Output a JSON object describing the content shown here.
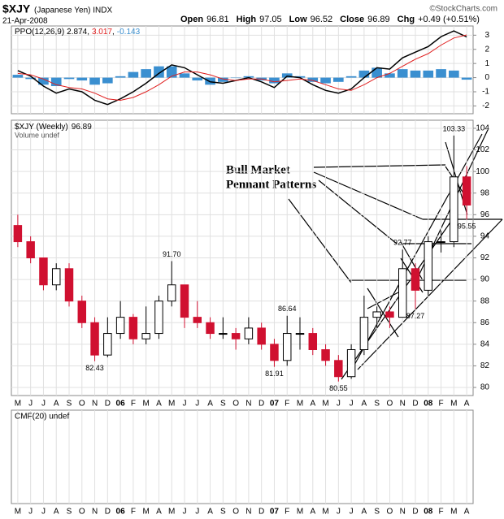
{
  "header": {
    "symbol": "$XJY",
    "name": "(Japanese Yen) INDX",
    "date": "21-Apr-2008",
    "watermark": "©StockCharts.com",
    "quote": [
      {
        "label": "Open",
        "value": "96.81"
      },
      {
        "label": "High",
        "value": "97.05"
      },
      {
        "label": "Low",
        "value": "96.52"
      },
      {
        "label": "Close",
        "value": "96.89"
      },
      {
        "label": "Chg",
        "value": "+0.49 (+0.51%)"
      }
    ]
  },
  "annotation": [
    "Bull Market",
    "Pennant Patterns"
  ],
  "chart_data": [
    {
      "type": "line",
      "title": "PPO(12,26,9)",
      "ylim": [
        -2.55,
        3.65
      ],
      "yticks": [
        -2,
        -1,
        0,
        1,
        2,
        3
      ],
      "grid": true,
      "series": [
        {
          "kind": "line",
          "color": "#000000",
          "values": [
            0.5,
            0.1,
            -0.6,
            -1.1,
            -0.8,
            -1.0,
            -1.6,
            -1.9,
            -1.5,
            -1.0,
            -0.4,
            0.3,
            0.9,
            0.7,
            0.2,
            -0.3,
            -0.4,
            -0.2,
            0.0,
            -0.3,
            -0.7,
            0.1,
            0.0,
            -0.5,
            -0.9,
            -1.1,
            -0.8,
            0.0,
            0.7,
            0.6,
            1.4,
            1.8,
            2.2,
            2.9,
            3.3,
            2.874
          ]
        },
        {
          "kind": "line",
          "color": "#e02020",
          "values": [
            0.3,
            0.2,
            -0.1,
            -0.5,
            -0.7,
            -0.8,
            -1.1,
            -1.5,
            -1.6,
            -1.4,
            -1.0,
            -0.5,
            0.1,
            0.4,
            0.4,
            0.2,
            -0.1,
            -0.2,
            -0.1,
            -0.1,
            -0.3,
            -0.2,
            -0.1,
            -0.2,
            -0.5,
            -0.8,
            -0.9,
            -0.5,
            0.0,
            0.3,
            0.8,
            1.3,
            1.7,
            2.3,
            2.8,
            3.017
          ]
        },
        {
          "kind": "bar",
          "color": "#3a8fd0",
          "values": [
            0.2,
            -0.1,
            -0.5,
            -0.6,
            -0.1,
            -0.2,
            -0.5,
            -0.4,
            0.1,
            0.4,
            0.6,
            0.8,
            0.8,
            0.3,
            -0.2,
            -0.5,
            -0.3,
            0.0,
            0.1,
            -0.2,
            -0.4,
            0.3,
            0.1,
            -0.3,
            -0.4,
            -0.3,
            0.1,
            0.5,
            0.7,
            0.3,
            0.6,
            0.5,
            0.5,
            0.6,
            0.5,
            -0.143
          ]
        }
      ]
    },
    {
      "type": "candlestick",
      "title": "$XJY (Weekly)",
      "subtitle": "Volume undef",
      "ylim": [
        79.25,
        104.75
      ],
      "yticks": [
        80,
        82,
        84,
        86,
        88,
        90,
        92,
        94,
        96,
        98,
        100,
        102,
        104
      ],
      "grid": true,
      "up_color": "#000000",
      "down_color": "#d01030",
      "categories": [
        "M",
        "J",
        "J",
        "A",
        "S",
        "O",
        "N",
        "D",
        "06",
        "F",
        "M",
        "A",
        "M",
        "J",
        "J",
        "A",
        "S",
        "O",
        "N",
        "D",
        "07",
        "F",
        "M",
        "A",
        "M",
        "J",
        "J",
        "A",
        "S",
        "O",
        "N",
        "D",
        "08",
        "F",
        "M",
        "A"
      ],
      "open": [
        95,
        93.5,
        92,
        89.5,
        91,
        88,
        86,
        83,
        85,
        86.5,
        84.5,
        85,
        88,
        89.5,
        86.5,
        86,
        85,
        85,
        84.5,
        85.5,
        84,
        82.5,
        85,
        85,
        83.5,
        82.5,
        81,
        83.5,
        86.5,
        87,
        86.5,
        91,
        89,
        93.5,
        93.5,
        99.5
      ],
      "high": [
        96,
        94,
        92,
        91.5,
        91.5,
        88.5,
        86.5,
        86.5,
        88,
        86.8,
        87.5,
        88.5,
        91.7,
        89.5,
        88,
        86.5,
        86.5,
        85.5,
        86.5,
        86,
        84.5,
        86.64,
        86.5,
        85.5,
        84,
        83,
        84,
        88.5,
        87.5,
        87.5,
        92.77,
        91.5,
        94,
        94.5,
        103.33,
        100.5
      ],
      "low": [
        93,
        91.5,
        89,
        89,
        87.5,
        85.5,
        82.43,
        82.8,
        84.5,
        84,
        84,
        84.5,
        87.5,
        85.5,
        85.5,
        84.5,
        84.5,
        83.5,
        84,
        83.5,
        81.91,
        82,
        83.5,
        83,
        82,
        80.55,
        80.8,
        83,
        85.5,
        85.5,
        86.5,
        87.27,
        88.5,
        92.5,
        93,
        95.55
      ],
      "close": [
        93.5,
        92,
        89.5,
        91,
        88,
        86,
        83,
        85,
        86.5,
        84.5,
        85,
        88,
        89.5,
        86.5,
        86,
        85,
        85,
        84.5,
        85.5,
        84,
        82.5,
        85,
        85,
        83.5,
        82.5,
        81,
        83.5,
        86.5,
        87,
        86.5,
        91,
        89,
        93.5,
        93.5,
        99.5,
        96.89
      ],
      "extremes": [
        {
          "x": 6,
          "value": 82.43,
          "label": "82.43"
        },
        {
          "x": 12,
          "value": 91.7,
          "label": "91.70"
        },
        {
          "x": 21,
          "value": 86.64,
          "label": "86.64"
        },
        {
          "x": 20,
          "value": 81.91,
          "label": "81.91"
        },
        {
          "x": 25,
          "value": 80.55,
          "label": "80.55"
        },
        {
          "x": 30,
          "value": 92.77,
          "label": "92.77"
        },
        {
          "x": 31,
          "value": 87.27,
          "label": "87.27"
        },
        {
          "x": 34,
          "value": 103.33,
          "label": "103.33"
        },
        {
          "x": 35,
          "value": 95.55,
          "label": "95.55"
        }
      ]
    },
    {
      "type": "line",
      "title": "CMF(20) undef",
      "grid": true,
      "categories": [
        "M",
        "J",
        "J",
        "A",
        "S",
        "O",
        "N",
        "D",
        "06",
        "F",
        "M",
        "A",
        "M",
        "J",
        "J",
        "A",
        "S",
        "O",
        "N",
        "D",
        "07",
        "F",
        "M",
        "A",
        "M",
        "J",
        "J",
        "A",
        "S",
        "O",
        "N",
        "D",
        "08",
        "F",
        "M",
        "A"
      ]
    }
  ]
}
